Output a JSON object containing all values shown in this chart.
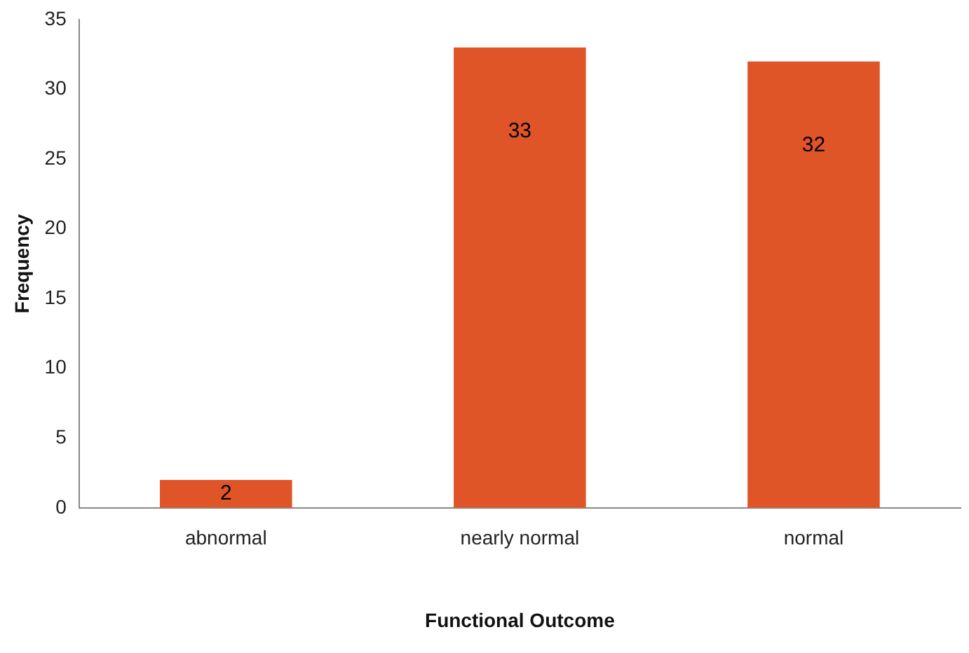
{
  "chart_data": {
    "type": "bar",
    "xlabel": "Functional Outcome",
    "ylabel": "Frequency",
    "categories": [
      "abnormal",
      "nearly normal",
      "normal"
    ],
    "values": [
      2,
      33,
      32
    ],
    "color": "#e05528",
    "ylim": [
      0,
      35
    ],
    "yticks": [
      0,
      5,
      10,
      15,
      20,
      25,
      30,
      35
    ],
    "grid": false,
    "data_labels": true
  }
}
